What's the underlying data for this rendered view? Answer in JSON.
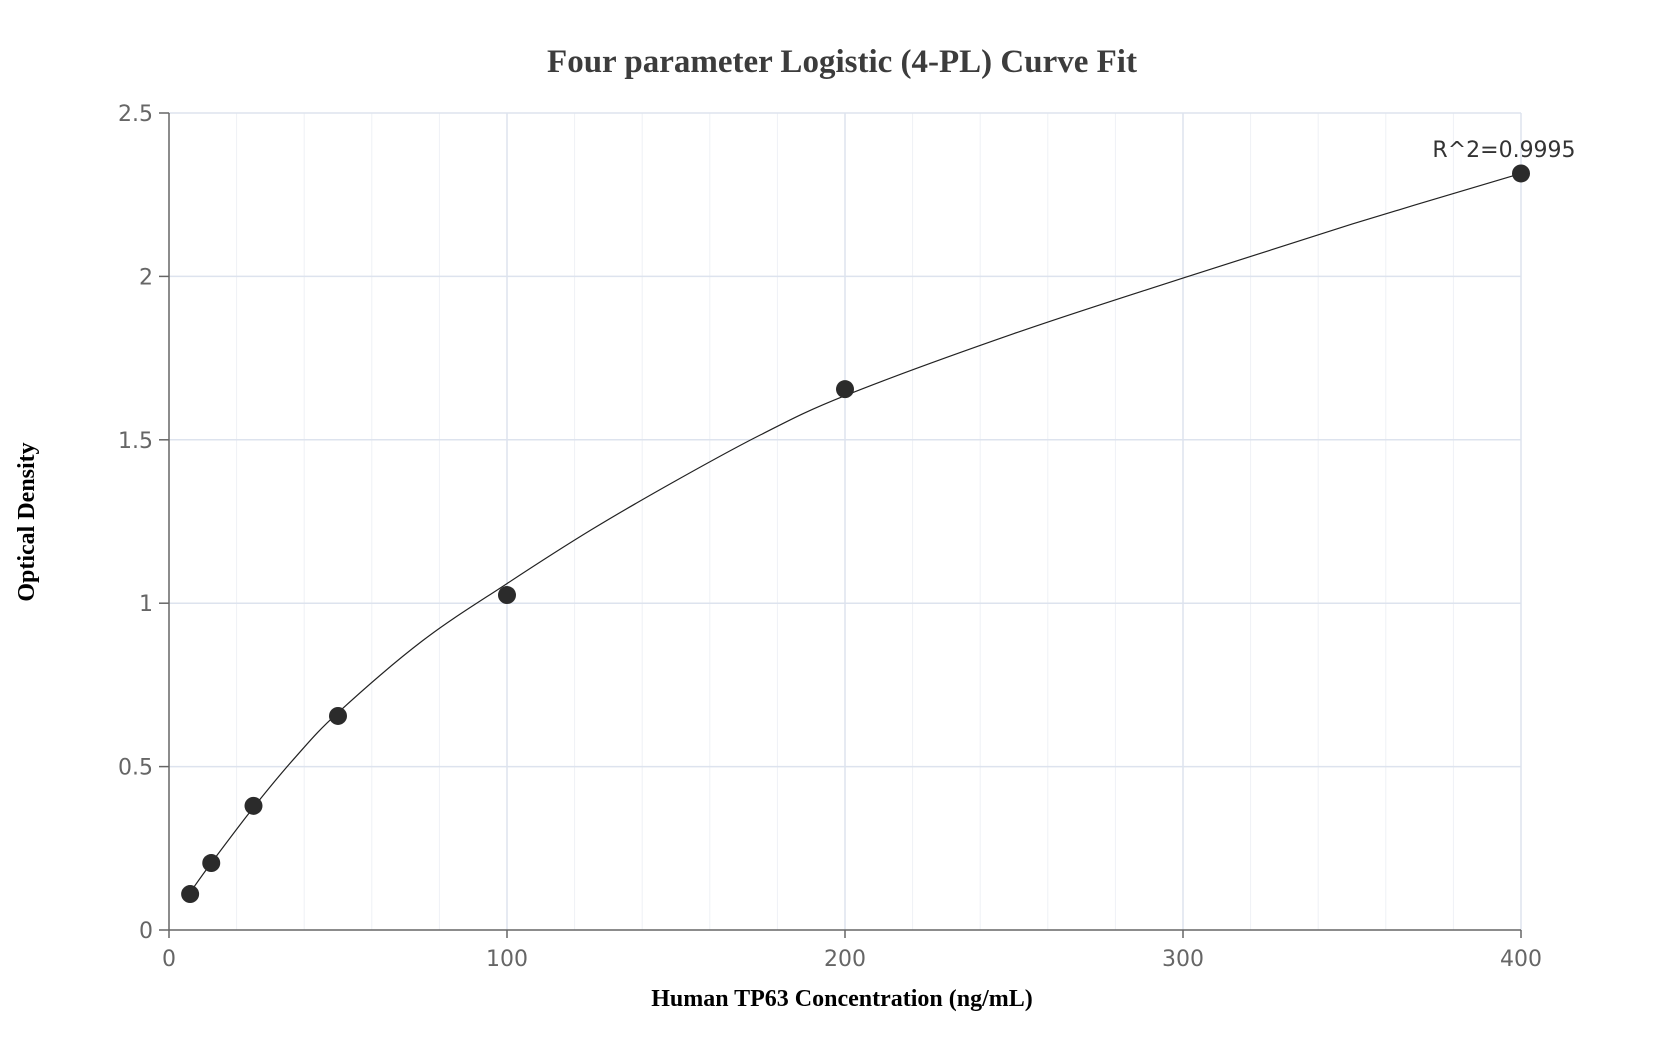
{
  "chart_data": {
    "type": "scatter",
    "title": "Four parameter Logistic (4-PL) Curve Fit",
    "xlabel": "Human TP63 Concentration (ng/mL)",
    "ylabel": "Optical Density",
    "xlim": [
      0,
      400
    ],
    "ylim": [
      0,
      2.5
    ],
    "x_ticks": [
      0,
      100,
      200,
      300,
      400
    ],
    "x_tick_labels": [
      "0",
      "100",
      "200",
      "300",
      "400"
    ],
    "y_ticks": [
      0,
      0.5,
      1,
      1.5,
      2,
      2.5
    ],
    "y_tick_labels": [
      "0",
      "0.5",
      "1",
      "1.5",
      "2",
      "2.5"
    ],
    "x_minor_step": 20,
    "grid": true,
    "legend": "none",
    "annotation": "R^2=0.9995",
    "points": {
      "x": [
        6.25,
        12.5,
        25,
        50,
        100,
        200,
        400
      ],
      "y": [
        0.11,
        0.205,
        0.38,
        0.655,
        1.025,
        1.655,
        2.315
      ]
    },
    "fit_curve": {
      "x": [
        6.25,
        12.5,
        25,
        37.5,
        50,
        75,
        100,
        125,
        150,
        175,
        200,
        250,
        300,
        350,
        400
      ],
      "y": [
        0.115,
        0.205,
        0.375,
        0.53,
        0.665,
        0.885,
        1.06,
        1.225,
        1.375,
        1.515,
        1.635,
        1.825,
        1.995,
        2.16,
        2.315
      ]
    },
    "colors": {
      "points": "#2b2b2b",
      "curve": "#222222",
      "major_grid": "#dde3ee",
      "minor_grid": "#eef1f6",
      "axis": "#666666"
    }
  }
}
